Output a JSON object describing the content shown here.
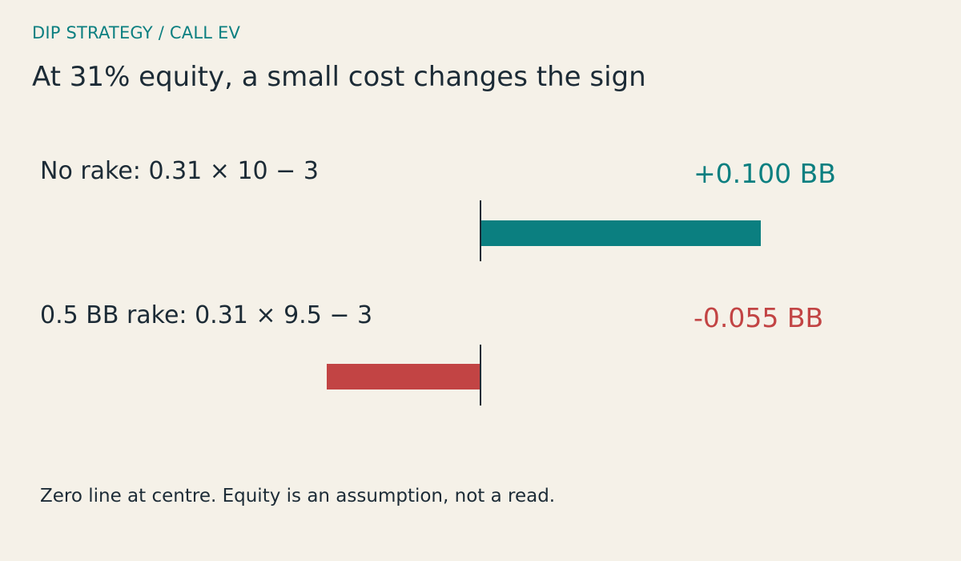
{
  "header": {
    "eyebrow": "DIP STRATEGY / CALL EV",
    "headline": "At 31% equity, a small cost changes the sign"
  },
  "chart_data": {
    "type": "bar",
    "orientation": "horizontal",
    "categories": [
      "No rake: 0.31 × 10 − 3",
      "0.5 BB rake: 0.31 × 9.5 − 3"
    ],
    "values": [
      0.1,
      -0.055
    ],
    "value_labels": [
      "+0.100 BB",
      "-0.055 BB"
    ],
    "unit": "BB",
    "zero_line": "centre"
  },
  "footnote": "Zero line at centre. Equity is an assumption, not a read.",
  "colors": {
    "positive": "#0b7f80",
    "negative": "#c24444",
    "background": "#f5f1e8",
    "text": "#1c2b36"
  }
}
